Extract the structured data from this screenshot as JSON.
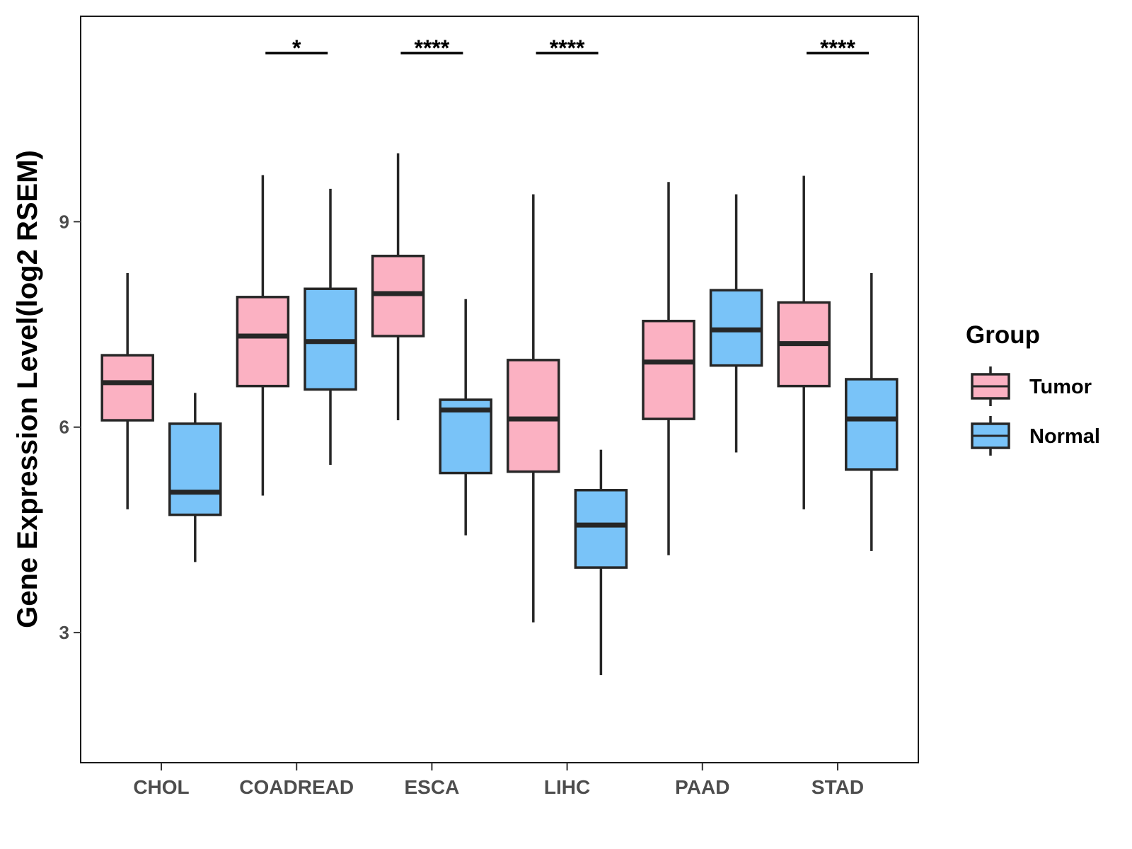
{
  "chart_data": {
    "type": "boxplot",
    "title": "",
    "xlabel": "",
    "ylabel": "Gene Expression Level(log2 RSEM)",
    "ylim": [
      1.1,
      12.0
    ],
    "yticks": [
      3,
      6,
      9
    ],
    "categories": [
      "CHOL",
      "COADREAD",
      "ESCA",
      "LIHC",
      "PAAD",
      "STAD"
    ],
    "legend": {
      "title": "Group",
      "position": "right",
      "entries": [
        "Tumor",
        "Normal"
      ]
    },
    "series": [
      {
        "name": "Tumor",
        "color": "#FBB1C2",
        "boxes": [
          {
            "min": 4.8,
            "q1": 6.1,
            "median": 6.65,
            "q3": 7.05,
            "max": 8.25
          },
          {
            "min": 5.0,
            "q1": 6.6,
            "median": 7.33,
            "q3": 7.9,
            "max": 9.68
          },
          {
            "min": 6.1,
            "q1": 7.33,
            "median": 7.95,
            "q3": 8.5,
            "max": 10.0
          },
          {
            "min": 3.15,
            "q1": 5.35,
            "median": 6.12,
            "q3": 6.98,
            "max": 9.4
          },
          {
            "min": 4.13,
            "q1": 6.12,
            "median": 6.95,
            "q3": 7.55,
            "max": 9.58
          },
          {
            "min": 4.8,
            "q1": 6.6,
            "median": 7.22,
            "q3": 7.82,
            "max": 9.67
          }
        ]
      },
      {
        "name": "Normal",
        "color": "#79C3F8",
        "boxes": [
          {
            "min": 4.03,
            "q1": 4.72,
            "median": 5.05,
            "q3": 6.05,
            "max": 6.5
          },
          {
            "min": 5.45,
            "q1": 6.55,
            "median": 7.25,
            "q3": 8.02,
            "max": 9.48
          },
          {
            "min": 4.42,
            "q1": 5.33,
            "median": 6.25,
            "q3": 6.4,
            "max": 7.87
          },
          {
            "min": 2.38,
            "q1": 3.95,
            "median": 4.57,
            "q3": 5.08,
            "max": 5.67
          },
          {
            "min": 5.63,
            "q1": 6.9,
            "median": 7.42,
            "q3": 8.0,
            "max": 9.4
          },
          {
            "min": 4.19,
            "q1": 5.38,
            "median": 6.12,
            "q3": 6.7,
            "max": 8.25
          }
        ]
      }
    ],
    "significance": [
      {
        "category": "COADREAD",
        "label": "*"
      },
      {
        "category": "ESCA",
        "label": "****"
      },
      {
        "category": "LIHC",
        "label": "****"
      },
      {
        "category": "STAD",
        "label": "****"
      }
    ]
  }
}
